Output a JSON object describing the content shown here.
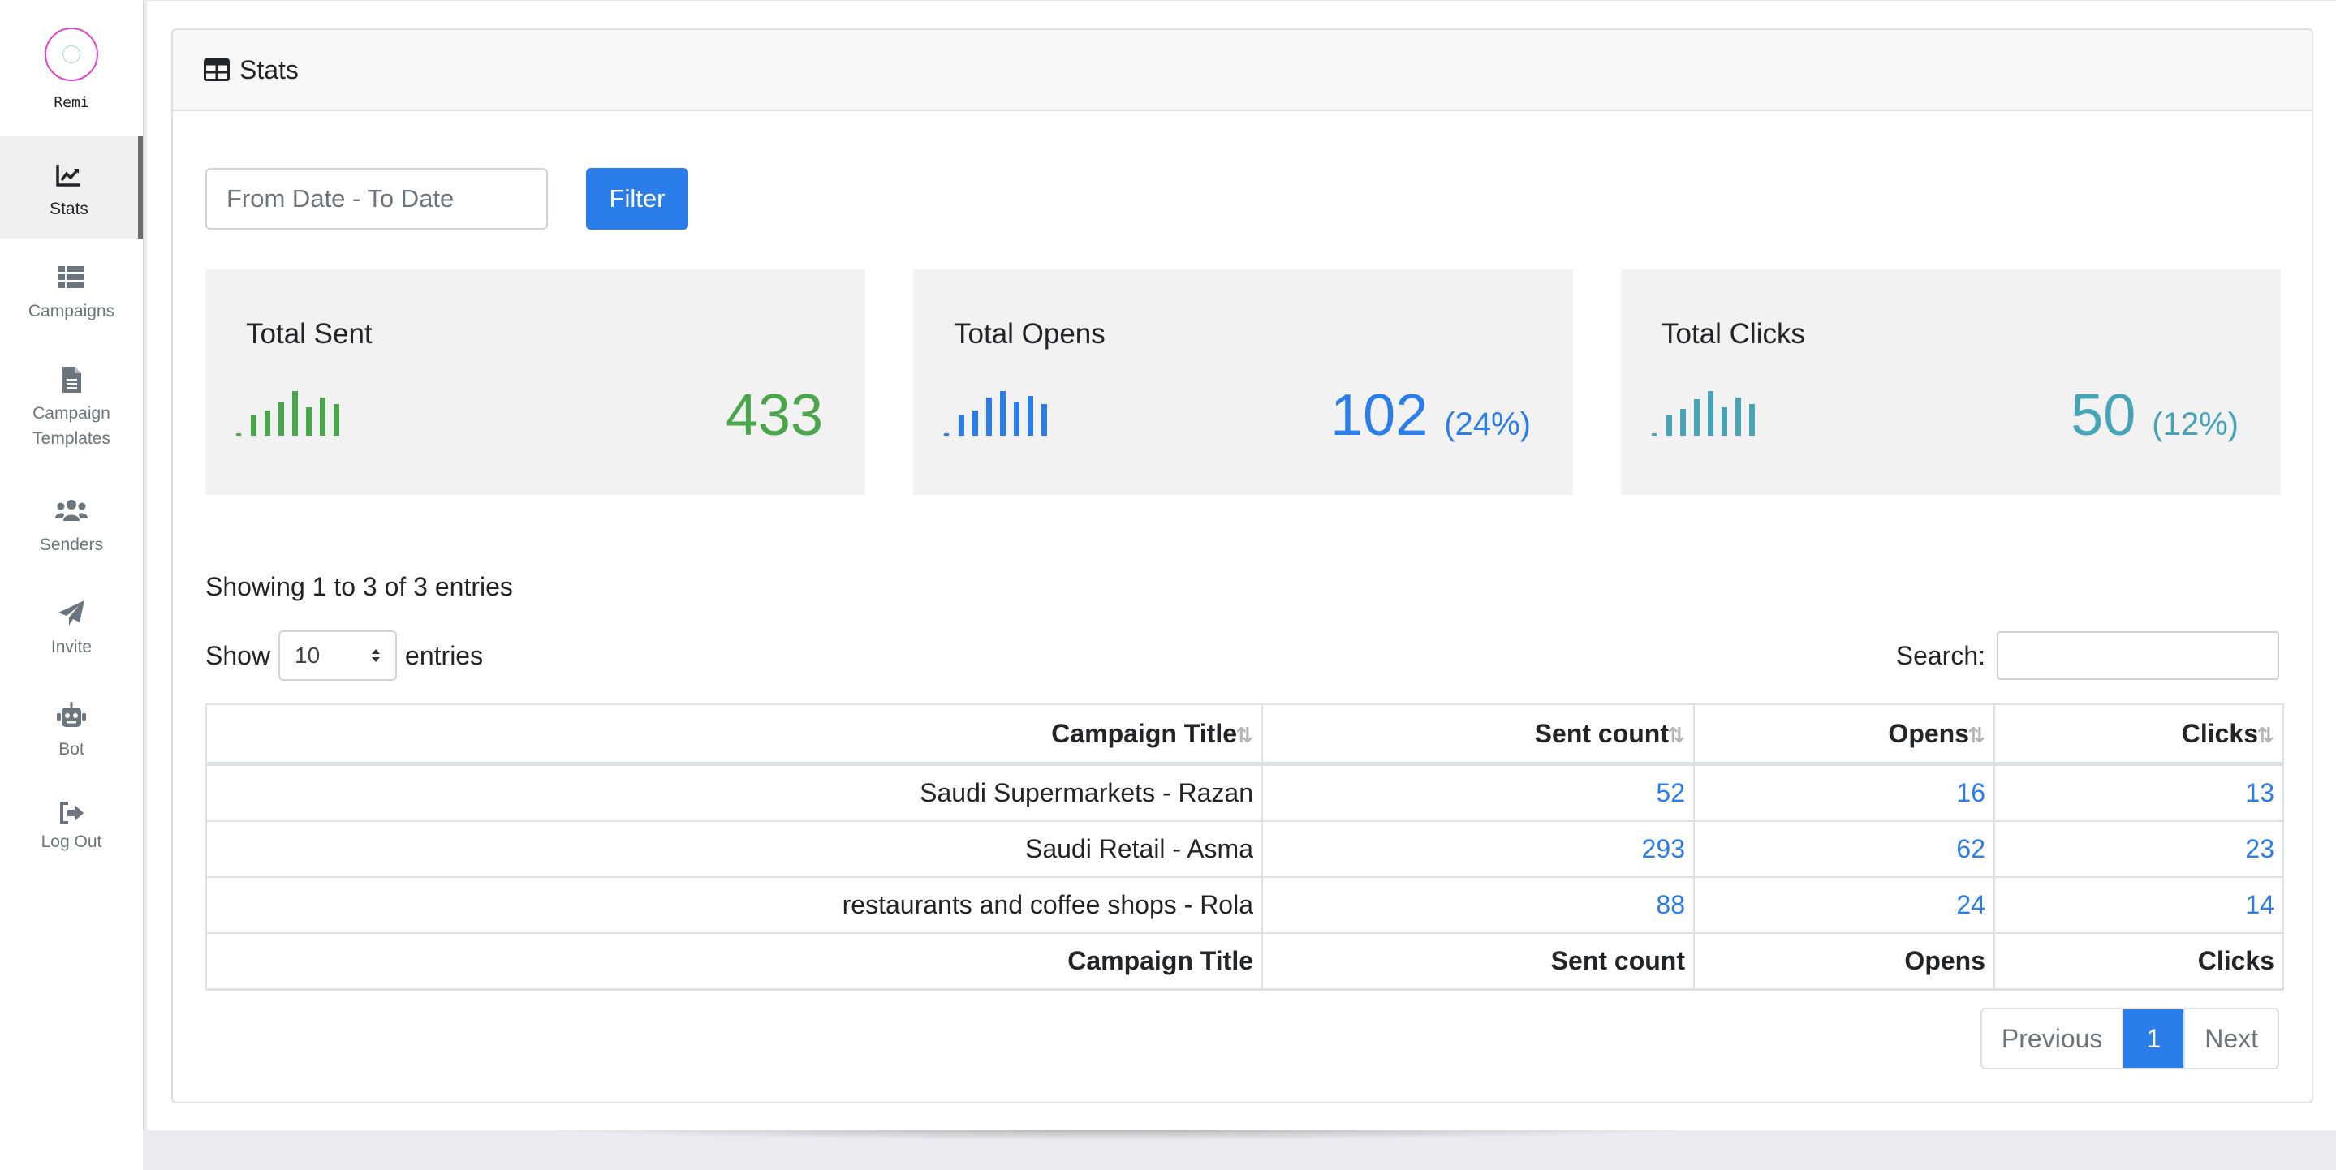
{
  "brand": {
    "name": "Remi"
  },
  "nav": [
    {
      "label": "Stats",
      "icon": "chart-line-icon",
      "active": true
    },
    {
      "label": "Campaigns",
      "icon": "list-icon",
      "active": false
    },
    {
      "label": "Campaign Templates",
      "icon": "file-icon",
      "active": false
    },
    {
      "label": "Senders",
      "icon": "users-icon",
      "active": false
    },
    {
      "label": "Invite",
      "icon": "paper-plane-icon",
      "active": false
    },
    {
      "label": "Bot",
      "icon": "robot-icon",
      "active": false
    },
    {
      "label": "Log Out",
      "icon": "sign-out-icon",
      "active": false
    }
  ],
  "card": {
    "title": "Stats",
    "icon": "table-icon"
  },
  "filter": {
    "placeholder": "From Date - To Date",
    "button": "Filter"
  },
  "stats": [
    {
      "title": "Total Sent",
      "value": "433",
      "percent": "",
      "color": "#4aa64a"
    },
    {
      "title": "Total Opens",
      "value": "102",
      "percent": "(24%)",
      "color": "#2b7de9"
    },
    {
      "title": "Total Clicks",
      "value": "50",
      "percent": "(12%)",
      "color": "#47a3b8"
    }
  ],
  "table": {
    "info": "Showing 1 to 3 of 3 entries",
    "show_label": "Show",
    "length_value": "10",
    "entries_label": "entries",
    "search_label": "Search:",
    "columns": [
      "Campaign Title",
      "Sent count",
      "Opens",
      "Clicks"
    ],
    "rows": [
      [
        "Saudi Supermarkets - Razan",
        "52",
        "16",
        "13"
      ],
      [
        "Saudi Retail - Asma",
        "293",
        "62",
        "23"
      ],
      [
        "restaurants and coffee shops - Rola",
        "88",
        "24",
        "14"
      ]
    ]
  },
  "pagination": {
    "previous": "Previous",
    "current": "1",
    "next": "Next"
  }
}
